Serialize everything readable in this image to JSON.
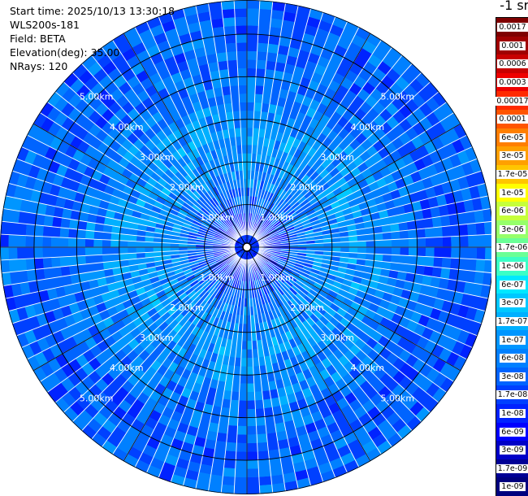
{
  "info": {
    "start_time": "Start time: 2025/10/13 13:30:18",
    "instrument": "WLS200s-181",
    "field": "Field: BETA",
    "elevation": "Elevation(deg): 35.00",
    "nrays": "NRays: 120"
  },
  "colorbar": {
    "unit_label": "-1 sr-",
    "labels": [
      "0.0017",
      "0.001",
      "0.0006",
      "0.0003",
      "0.00017",
      "0.0001",
      "6e-05",
      "3e-05",
      "1.7e-05",
      "1e-05",
      "6e-06",
      "3e-06",
      "1.7e-06",
      "1e-06",
      "6e-07",
      "3e-07",
      "1.7e-07",
      "1e-07",
      "6e-08",
      "3e-08",
      "1.7e-08",
      "1e-08",
      "6e-09",
      "3e-09",
      "1.7e-09",
      "1e-09"
    ],
    "colors": [
      "#7f0000",
      "#a00000",
      "#c80000",
      "#ee0000",
      "#ff2a00",
      "#ff5500",
      "#ff7f00",
      "#ffa000",
      "#ffc600",
      "#ffff00",
      "#c6ff3a",
      "#96ff6a",
      "#6aff96",
      "#3affc6",
      "#00e8ff",
      "#00c8ff",
      "#00b0ff",
      "#0096ff",
      "#0080ff",
      "#0064ff",
      "#0040ff",
      "#0022ff",
      "#0000ff",
      "#0000c8",
      "#000096",
      "#00007f"
    ]
  },
  "chart_data": {
    "type": "heatmap",
    "projection": "polar (PPI)",
    "field": "BETA",
    "elevation_deg": 35.0,
    "n_rays": 120,
    "range_rings_km": [
      1.0,
      2.0,
      3.0,
      4.0,
      5.0
    ],
    "ring_labels": [
      "1.00km",
      "2.00km",
      "3.00km",
      "4.00km",
      "5.00km"
    ],
    "max_range_km": 5.8,
    "scale": "log",
    "value_range": [
      1e-09,
      0.0017
    ],
    "dominant_color": "#1e90ff",
    "typical_value_by_range_km": [
      {
        "range_km": 0.5,
        "value": 1e-08
      },
      {
        "range_km": 1.5,
        "value": 6e-08
      },
      {
        "range_km": 2.5,
        "value": 1e-07
      },
      {
        "range_km": 3.5,
        "value": 6e-08
      },
      {
        "range_km": 4.5,
        "value": 3e-08
      },
      {
        "range_km": 5.5,
        "value": 3e-08
      }
    ]
  }
}
